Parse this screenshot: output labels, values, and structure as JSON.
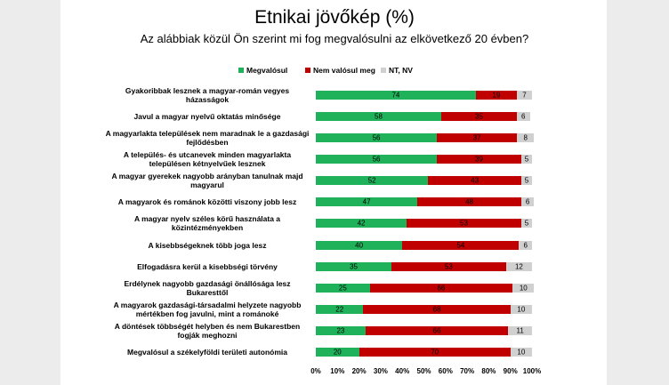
{
  "chart_data": {
    "type": "stacked-bar-horizontal",
    "title": "Etnikai jövőkép (%)",
    "subtitle": "Az alábbiak közül Ön szerint mi fog megvalósulni az elkövetkező 20 évben?",
    "categories": [
      "Gyakoribbak lesznek a magyar-román vegyes házasságok",
      "Javul a magyar nyelvű oktatás minősége",
      "A magyarlakta települések nem maradnak le a gazdasági fejlődésben",
      "A település- és utcanevek minden magyarlakta településen kétnyelvűek lesznek",
      "A magyar gyerekek nagyobb arányban tanulnak majd magyarul",
      "A magyarok és románok közötti viszony jobb lesz",
      "A magyar nyelv széles körű használata a közintézményekben",
      "A kisebbségeknek több joga lesz",
      "Elfogadásra kerül a kisebbségi törvény",
      "Erdélynek nagyobb gazdasági önállósága lesz Bukaresttől",
      "A magyarok gazdasági-társadalmi helyzete nagyobb mértékben fog javulni, mint a románoké",
      "A döntések többségét helyben és nem Bukarestben fogják meghozni",
      "Megvalósul a székelyföldi területi autonómia"
    ],
    "series": [
      {
        "name": "Megvalósul",
        "color": "#1fb25a",
        "values": [
          74,
          58,
          56,
          56,
          52,
          47,
          42,
          40,
          35,
          25,
          22,
          23,
          20
        ]
      },
      {
        "name": "Nem valósul meg",
        "color": "#c00000",
        "values": [
          19,
          35,
          37,
          39,
          43,
          48,
          53,
          54,
          53,
          66,
          68,
          66,
          70
        ]
      },
      {
        "name": "NT, NV",
        "color": "#d0d0d0",
        "values": [
          7,
          6,
          8,
          5,
          5,
          6,
          5,
          6,
          12,
          10,
          10,
          11,
          10
        ]
      }
    ],
    "xlim": [
      0,
      100
    ],
    "xticks": [
      {
        "value": 0,
        "label": "0%"
      },
      {
        "value": 10,
        "label": "10%"
      },
      {
        "value": 20,
        "label": "20%"
      },
      {
        "value": 30,
        "label": "30%"
      },
      {
        "value": 40,
        "label": "40%"
      },
      {
        "value": 50,
        "label": "50%"
      },
      {
        "value": 60,
        "label": "60%"
      },
      {
        "value": 70,
        "label": "70%"
      },
      {
        "value": 80,
        "label": "80%"
      },
      {
        "value": 90,
        "label": "90%"
      },
      {
        "value": 100,
        "label": "100%"
      }
    ]
  }
}
